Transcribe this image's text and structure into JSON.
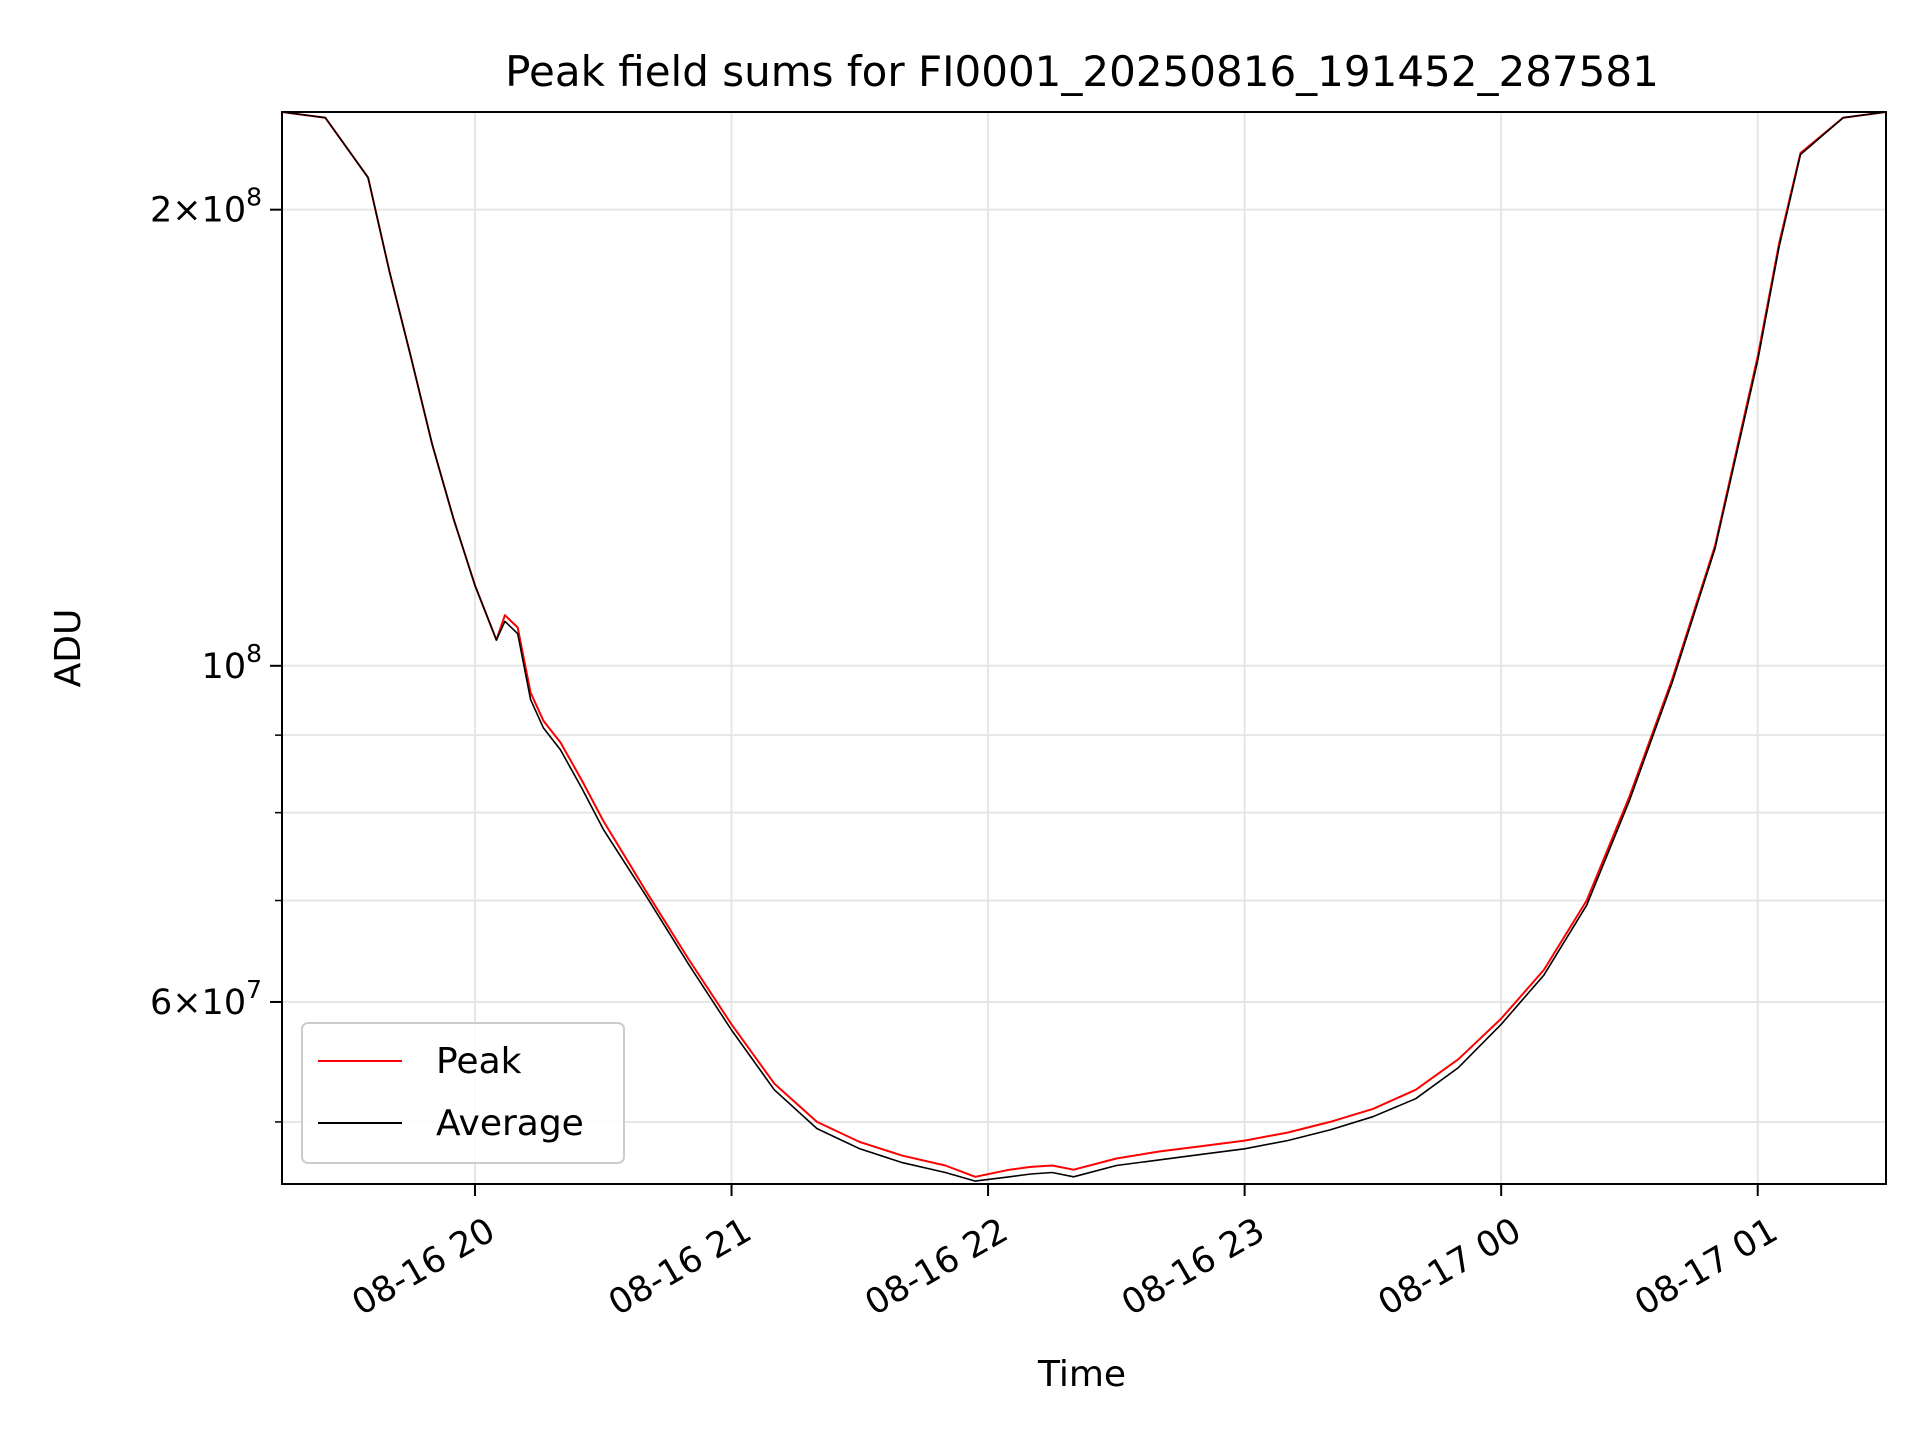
{
  "chart_data": {
    "type": "line",
    "title": "Peak field sums for FI0001_20250816_191452_287581",
    "xlabel": "Time",
    "ylabel": "ADU",
    "yscale": "log",
    "ylim": [
      45500000,
      232000000
    ],
    "xlim": [
      "2025-08-16 19:14:52",
      "2025-08-17 01:30:00"
    ],
    "grid": true,
    "legend_position": "lower-left",
    "x_ticks": [
      {
        "x": "2025-08-16 20:00",
        "label": "08-16 20"
      },
      {
        "x": "2025-08-16 21:00",
        "label": "08-16 21"
      },
      {
        "x": "2025-08-16 22:00",
        "label": "08-16 22"
      },
      {
        "x": "2025-08-16 23:00",
        "label": "08-16 23"
      },
      {
        "x": "2025-08-17 00:00",
        "label": "08-17 00"
      },
      {
        "x": "2025-08-17 01:00",
        "label": "08-17 01"
      }
    ],
    "y_major_ticks": [
      {
        "value": 60000000,
        "mantissa": "6",
        "exponent": "7"
      },
      {
        "value": 100000000,
        "mantissa": "",
        "exponent": "8"
      },
      {
        "value": 200000000,
        "mantissa": "2",
        "exponent": "8"
      }
    ],
    "y_minor_ticks": [
      50000000,
      70000000,
      80000000,
      90000000
    ],
    "series": [
      {
        "name": "Peak",
        "color": "#ff0000",
        "x": [
          "2025-08-16 19:14:52",
          "2025-08-16 19:25",
          "2025-08-16 19:35",
          "2025-08-16 19:40",
          "2025-08-16 19:45",
          "2025-08-16 19:50",
          "2025-08-16 19:55",
          "2025-08-16 20:00",
          "2025-08-16 20:05",
          "2025-08-16 20:07",
          "2025-08-16 20:10",
          "2025-08-16 20:13",
          "2025-08-16 20:16",
          "2025-08-16 20:20",
          "2025-08-16 20:25",
          "2025-08-16 20:30",
          "2025-08-16 20:40",
          "2025-08-16 20:50",
          "2025-08-16 21:00",
          "2025-08-16 21:10",
          "2025-08-16 21:20",
          "2025-08-16 21:30",
          "2025-08-16 21:40",
          "2025-08-16 21:50",
          "2025-08-16 21:57",
          "2025-08-16 22:05",
          "2025-08-16 22:10",
          "2025-08-16 22:15",
          "2025-08-16 22:20",
          "2025-08-16 22:30",
          "2025-08-16 22:40",
          "2025-08-16 22:50",
          "2025-08-16 23:00",
          "2025-08-16 23:10",
          "2025-08-16 23:20",
          "2025-08-16 23:30",
          "2025-08-16 23:40",
          "2025-08-16 23:50",
          "2025-08-17 00:00",
          "2025-08-17 00:10",
          "2025-08-17 00:20",
          "2025-08-17 00:30",
          "2025-08-17 00:40",
          "2025-08-17 00:50",
          "2025-08-17 01:00",
          "2025-08-17 01:05",
          "2025-08-17 01:10",
          "2025-08-17 01:20",
          "2025-08-17 01:30"
        ],
        "values": [
          232000000,
          230000000,
          210000000,
          182000000,
          160000000,
          140000000,
          125000000,
          113000000,
          104000000,
          108000000,
          106000000,
          96000000,
          92000000,
          89000000,
          84000000,
          79000000,
          71000000,
          64000000,
          58000000,
          53000000,
          50000000,
          48500000,
          47500000,
          46800000,
          46000000,
          46500000,
          46700000,
          46800000,
          46500000,
          47300000,
          47800000,
          48200000,
          48600000,
          49200000,
          50000000,
          51000000,
          52500000,
          55000000,
          58500000,
          63000000,
          70000000,
          82000000,
          98000000,
          120000000,
          160000000,
          190000000,
          218000000,
          230000000,
          232000000
        ]
      },
      {
        "name": "Average",
        "color": "#000000",
        "x": [
          "2025-08-16 19:14:52",
          "2025-08-16 19:25",
          "2025-08-16 19:35",
          "2025-08-16 19:40",
          "2025-08-16 19:45",
          "2025-08-16 19:50",
          "2025-08-16 19:55",
          "2025-08-16 20:00",
          "2025-08-16 20:05",
          "2025-08-16 20:07",
          "2025-08-16 20:10",
          "2025-08-16 20:13",
          "2025-08-16 20:16",
          "2025-08-16 20:20",
          "2025-08-16 20:25",
          "2025-08-16 20:30",
          "2025-08-16 20:40",
          "2025-08-16 20:50",
          "2025-08-16 21:00",
          "2025-08-16 21:10",
          "2025-08-16 21:20",
          "2025-08-16 21:30",
          "2025-08-16 21:40",
          "2025-08-16 21:50",
          "2025-08-16 21:57",
          "2025-08-16 22:05",
          "2025-08-16 22:10",
          "2025-08-16 22:15",
          "2025-08-16 22:20",
          "2025-08-16 22:30",
          "2025-08-16 22:40",
          "2025-08-16 22:50",
          "2025-08-16 23:00",
          "2025-08-16 23:10",
          "2025-08-16 23:20",
          "2025-08-16 23:30",
          "2025-08-16 23:40",
          "2025-08-16 23:50",
          "2025-08-17 00:00",
          "2025-08-17 00:10",
          "2025-08-17 00:20",
          "2025-08-17 00:30",
          "2025-08-17 00:40",
          "2025-08-17 00:50",
          "2025-08-17 01:00",
          "2025-08-17 01:05",
          "2025-08-17 01:10",
          "2025-08-17 01:20",
          "2025-08-17 01:30"
        ],
        "values": [
          232000000,
          230000000,
          210000000,
          182000000,
          160000000,
          140000000,
          125000000,
          113000000,
          104000000,
          107000000,
          105000000,
          95000000,
          91000000,
          88000000,
          83000000,
          78000000,
          70500000,
          63500000,
          57500000,
          52500000,
          49500000,
          48000000,
          47000000,
          46300000,
          45700000,
          46000000,
          46200000,
          46300000,
          46000000,
          46800000,
          47200000,
          47600000,
          48000000,
          48600000,
          49400000,
          50400000,
          51800000,
          54300000,
          58000000,
          62500000,
          69500000,
          81500000,
          97500000,
          119500000,
          159000000,
          189000000,
          217500000,
          230000000,
          232000000
        ]
      }
    ]
  }
}
